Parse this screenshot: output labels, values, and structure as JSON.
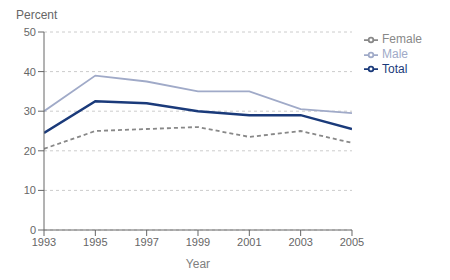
{
  "chart_data": {
    "type": "line",
    "x_label": "Year",
    "y_label": "Percent",
    "x": [
      1993,
      1995,
      1997,
      1999,
      2001,
      2003,
      2005
    ],
    "series": [
      {
        "name": "Total",
        "color": "#1a3a7a",
        "line_style": "solid",
        "values": [
          24.5,
          32.5,
          32.0,
          30.0,
          29.0,
          29.0,
          25.5
        ]
      },
      {
        "name": "Male",
        "color": "#a0aac8",
        "line_style": "solid",
        "values": [
          30.0,
          39.0,
          37.5,
          35.0,
          35.0,
          30.5,
          29.5
        ]
      },
      {
        "name": "Female",
        "color": "#888888",
        "line_style": "dashed",
        "values": [
          20.5,
          25.0,
          25.5,
          26.0,
          23.5,
          25.0,
          22.0
        ]
      }
    ],
    "xlim": [
      1993,
      2005
    ],
    "xticks": [
      1993,
      1995,
      1997,
      1999,
      2001,
      2003,
      2005
    ],
    "ylim": [
      0,
      50
    ],
    "yticks": [
      0,
      10,
      20,
      30,
      40,
      50
    ],
    "grid": "y",
    "legend": "right"
  }
}
